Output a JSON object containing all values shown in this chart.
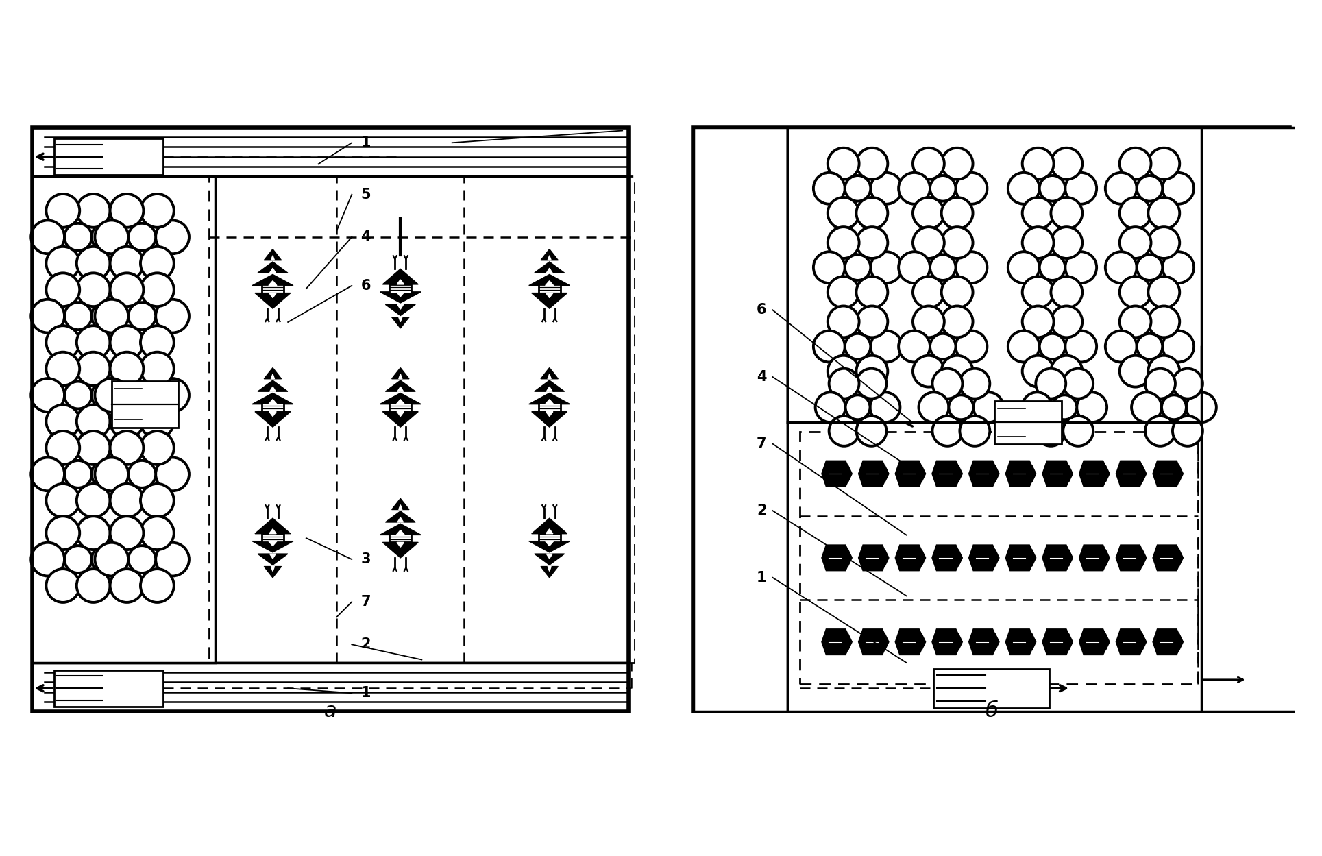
{
  "fig_width": 19.29,
  "fig_height": 12.49,
  "bg_color": "white",
  "label_a": "a",
  "label_b": "б"
}
